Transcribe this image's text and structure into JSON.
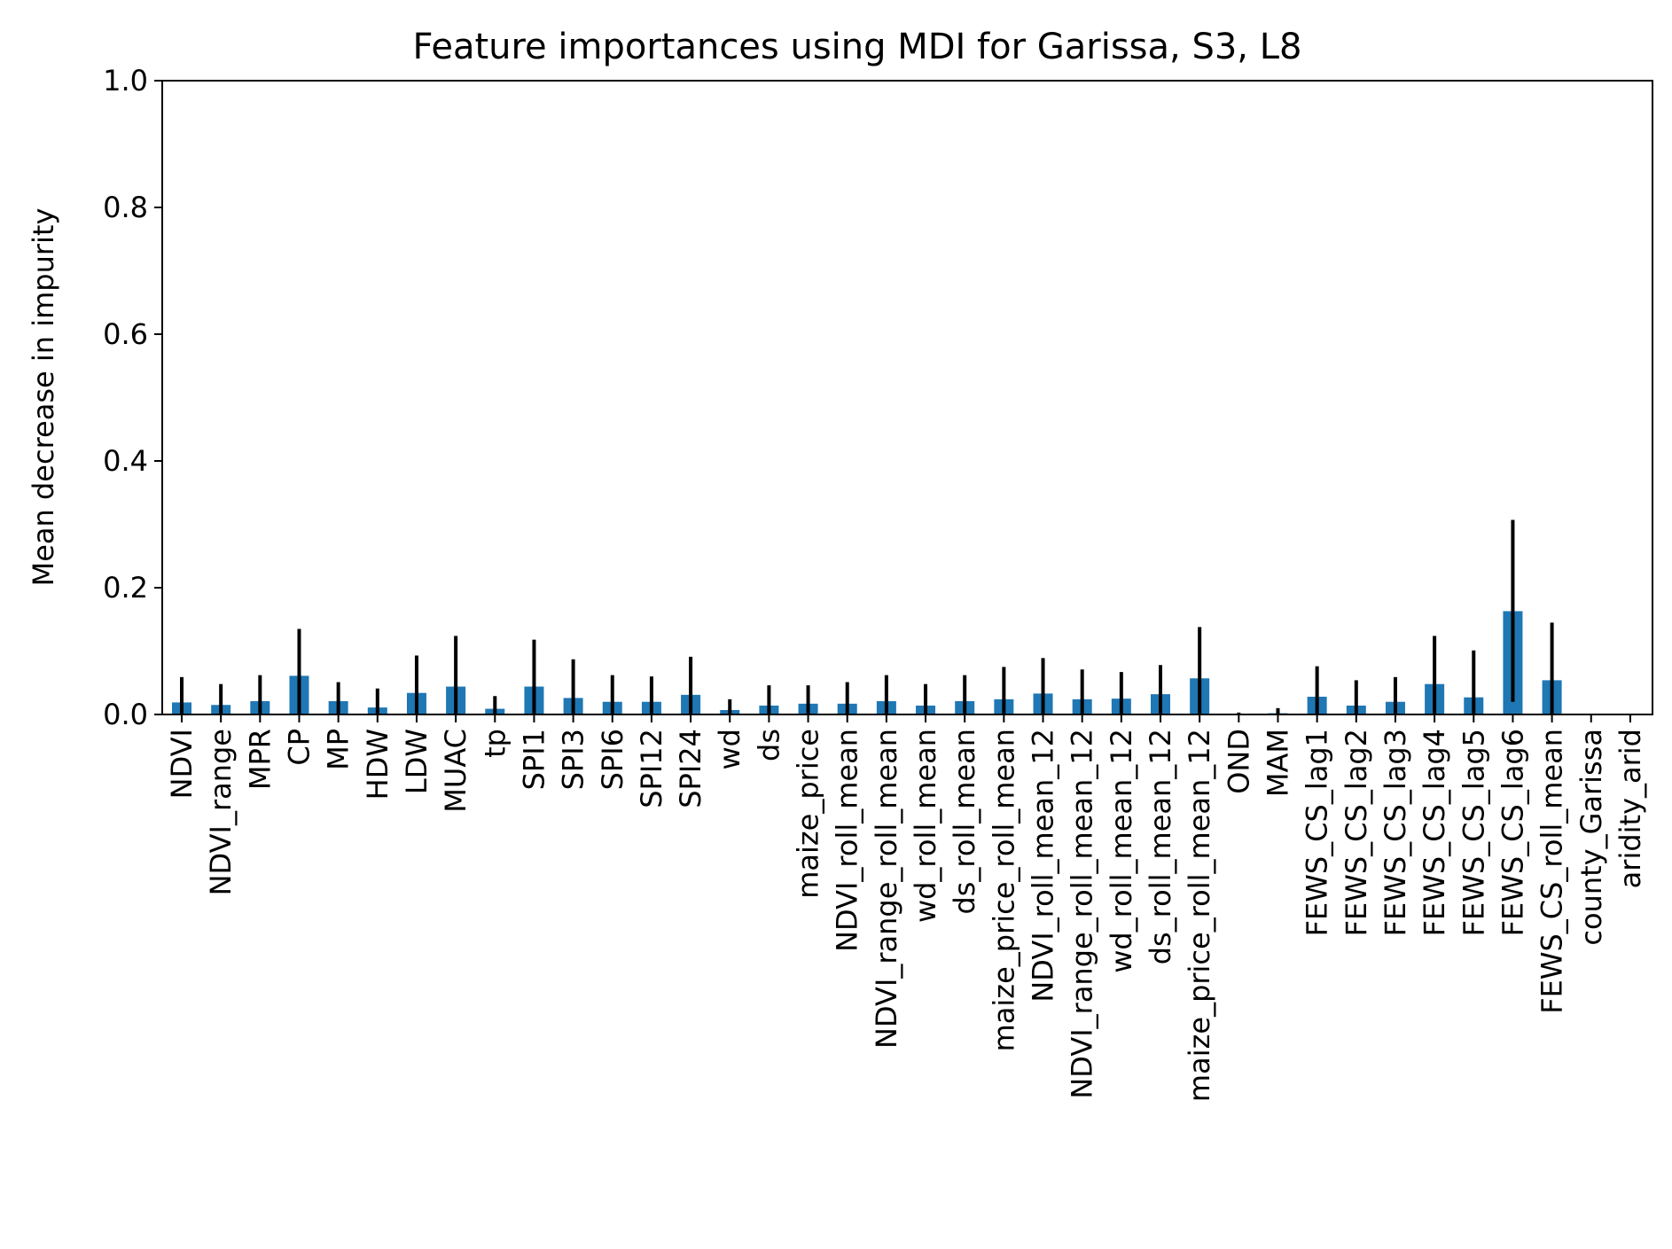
{
  "chart_data": {
    "type": "bar",
    "title": "Feature importances using MDI for Garissa, S3, L8",
    "xlabel": "",
    "ylabel": "Mean decrease in impurity",
    "ylim": [
      0,
      1
    ],
    "yticks": [
      "0.0",
      "0.2",
      "0.4",
      "0.6",
      "0.8",
      "1.0"
    ],
    "grid": false,
    "bar_color": "#1f77b4",
    "error_color": "#000000",
    "categories": [
      "NDVI",
      "NDVI_range",
      "MPR",
      "CP",
      "MP",
      "HDW",
      "LDW",
      "MUAC",
      "tp",
      "SPI1",
      "SPI3",
      "SPI6",
      "SPI12",
      "SPI24",
      "wd",
      "ds",
      "maize_price",
      "NDVI_roll_mean",
      "NDVI_range_roll_mean",
      "wd_roll_mean",
      "ds_roll_mean",
      "maize_price_roll_mean",
      "NDVI_roll_mean_12",
      "NDVI_range_roll_mean_12",
      "wd_roll_mean_12",
      "ds_roll_mean_12",
      "maize_price_roll_mean_12",
      "OND",
      "MAM",
      "FEWS_CS_lag1",
      "FEWS_CS_lag2",
      "FEWS_CS_lag3",
      "FEWS_CS_lag4",
      "FEWS_CS_lag5",
      "FEWS_CS_lag6",
      "FEWS_CS_roll_mean",
      "county_Garissa",
      "aridity_arid"
    ],
    "values": [
      0.019,
      0.015,
      0.021,
      0.061,
      0.021,
      0.011,
      0.034,
      0.044,
      0.009,
      0.044,
      0.026,
      0.02,
      0.02,
      0.031,
      0.007,
      0.014,
      0.017,
      0.017,
      0.021,
      0.014,
      0.021,
      0.024,
      0.033,
      0.024,
      0.025,
      0.032,
      0.057,
      0.001,
      0.002,
      0.028,
      0.014,
      0.02,
      0.048,
      0.027,
      0.163,
      0.054,
      0.0,
      0.0
    ],
    "error_upper": [
      0.059,
      0.048,
      0.062,
      0.135,
      0.051,
      0.041,
      0.093,
      0.124,
      0.029,
      0.118,
      0.087,
      0.062,
      0.06,
      0.091,
      0.024,
      0.046,
      0.046,
      0.051,
      0.062,
      0.048,
      0.062,
      0.075,
      0.089,
      0.071,
      0.067,
      0.078,
      0.138,
      0.003,
      0.01,
      0.076,
      0.054,
      0.059,
      0.124,
      0.101,
      0.307,
      0.145,
      0.0,
      0.0
    ],
    "error_lower": [
      0.0,
      0.0,
      0.0,
      0.0,
      0.0,
      0.0,
      0.0,
      0.0,
      0.0,
      0.0,
      0.0,
      0.0,
      0.0,
      0.0,
      0.0,
      0.0,
      0.0,
      0.0,
      0.0,
      0.0,
      0.0,
      0.0,
      0.0,
      0.0,
      0.0,
      0.0,
      0.0,
      0.0,
      0.0,
      0.0,
      0.0,
      0.0,
      0.0,
      0.0,
      0.02,
      0.0,
      0.0,
      0.0
    ]
  }
}
